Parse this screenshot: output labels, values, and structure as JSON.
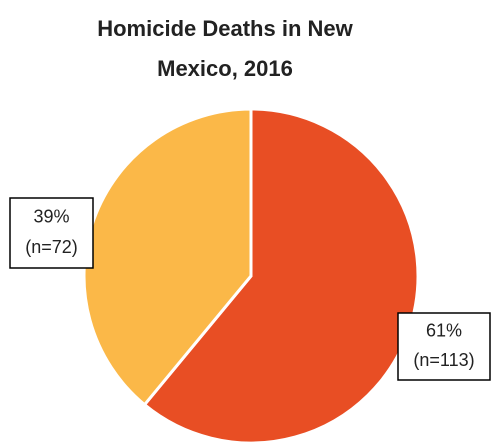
{
  "chart_data": {
    "type": "pie",
    "title_lines": [
      "Homicide Deaths in New",
      "Mexico, 2016"
    ],
    "values": [
      61,
      39
    ],
    "value_labels": [
      "61%",
      "39%"
    ],
    "counts": [
      113,
      72
    ],
    "count_labels": [
      "(n=113)",
      "(n=72)"
    ],
    "colors": [
      "#e84e24",
      "#fbb848"
    ]
  }
}
